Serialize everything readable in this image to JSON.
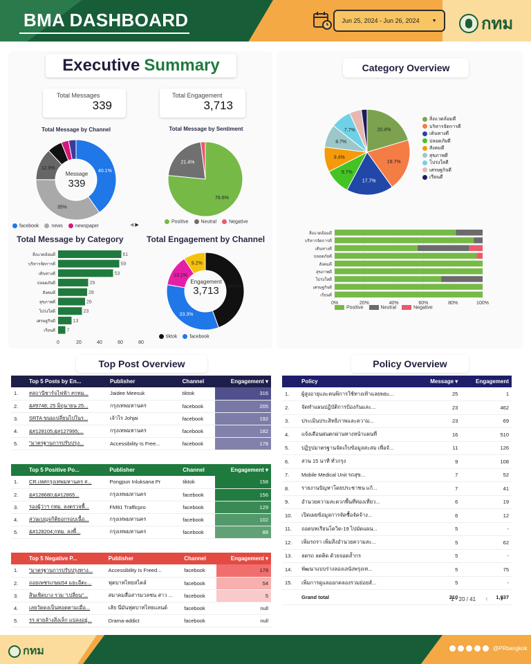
{
  "header": {
    "title": "BMA DASHBOARD",
    "date_range": "Jun 25, 2024 - Jun 26, 2024",
    "logo_text": "กทม"
  },
  "executive": {
    "title_a": "Executive",
    "title_b": "Summary",
    "total_messages_label": "Total Messages",
    "total_messages": "339",
    "total_engagement_label": "Total Engagement",
    "total_engagement": "3,713"
  },
  "channel_chart": {
    "title": "Total Message by Channel",
    "center_label": "Message",
    "center_value": "339",
    "legend": [
      "facebook",
      "news",
      "newspaper"
    ],
    "colors": {
      "facebook": "#1f77e8",
      "news": "#a9a9a9",
      "newspaper": "#d6187a"
    }
  },
  "sentiment_chart": {
    "title": "Total Message by Sentiment",
    "legend": [
      "Positive",
      "Neutral",
      "Negative"
    ]
  },
  "category_bar": {
    "title": "Total Message by Category"
  },
  "engagement_chart": {
    "title": "Total Engagement by Channel",
    "center_label": "Engagement",
    "center_value": "3,713",
    "legend": [
      "tiktok",
      "facebook"
    ]
  },
  "category_overview": {
    "title": "Category Overview",
    "legend": [
      "สิ่งแวดล้อมดี",
      "บริหารจัดการดี",
      "เดินทางดี",
      "ปลอดภัยดี",
      "สังคมดี",
      "สุขภาพดี",
      "โปร่งใสดี",
      "เศรษฐกิจดี",
      "เรียนดี"
    ],
    "bar_legend": [
      "Positive",
      "Neutral",
      "Negative"
    ]
  },
  "top_post": {
    "title": "Top Post Overview",
    "t1": {
      "headers": [
        "Top 5 Posts by En...",
        "Publisher",
        "Channel",
        "Engagement ▾"
      ],
      "rows": [
        [
          "1.",
          "#สถานีชาร์จไฟฟ้า #กทม...",
          "Jaidee Meesuk",
          "tiktok",
          "316"
        ],
        [
          "2.",
          "&#9748; 25 มิถุนายน 25...",
          "กรุงเทพมหานคร",
          "facebook",
          "205"
        ],
        [
          "3.",
          "SRTA ขนมเปลี่ยนไปในร...",
          "เจ้าไร Johjai",
          "facebook",
          "192"
        ],
        [
          "4.",
          "&#128105;&#127995;...",
          "กรุงเทพมหานคร",
          "facebook",
          "182"
        ],
        [
          "5.",
          "\"มาตรฐานการปรับปรุง...",
          "Accessibility Is Free...",
          "facebook",
          "178"
        ]
      ]
    },
    "t2": {
      "headers": [
        "Top 5 Positive Po...",
        "Publisher",
        "Channel",
        "Engagement ▾"
      ],
      "rows": [
        [
          "1.",
          "CR.เทศกรุงเทพมหานคร #...",
          "Pongpun Inluksana Pr",
          "tiktok",
          "158"
        ],
        [
          "2.",
          "&#128680;&#12865...",
          "กรุงเทพมหานคร",
          "facebook",
          "156"
        ],
        [
          "3.",
          "รองผู้ว่าฯ กทม. ลงตรวจพื้...",
          "FM91 Trafficpro",
          "facebook",
          "129"
        ],
        [
          "4.",
          "สวนเบญจกิติยอกรอบเนื้อ...",
          "กรุงเทพมหานคร",
          "facebook",
          "102"
        ],
        [
          "5.",
          "&#128204;กทม. ลงพื้...",
          "กรุงเทพมหานคร",
          "facebook",
          "88"
        ]
      ]
    },
    "t3": {
      "headers": [
        "Top 5 Negative P...",
        "Publisher",
        "Channel",
        "Engagement ▾"
      ],
      "rows": [
        [
          "1.",
          "\"มาตรฐานการปรับปรุงทาง...",
          "Accessibility Is Freed...",
          "facebook",
          "178"
        ],
        [
          "2.",
          "ถอยเพชรเกษม54 แยะอีตะ...",
          "ฟุตบาทไทยสไตล์",
          "facebook",
          "54"
        ],
        [
          "3.",
          "สินเชิดบาง รวม \"เปลี่ยน\"...",
          "สมาคมสื่อสารมวลชน สาว ...",
          "facebook",
          "5"
        ],
        [
          "4.",
          "เลยวัดดงเป็นทอดตามเมื่อ...",
          "เส้ย นี่มันฟุตบาทไทยแลนด์",
          "facebook",
          "null"
        ],
        [
          "5.",
          "รร สายล้างสิ่งเล็ก แปลงอยู่...",
          "Drama-addict",
          "facebook",
          "null"
        ]
      ]
    }
  },
  "policy": {
    "title": "Policy Overview",
    "headers": [
      "Policy",
      "Message ▾",
      "Engagement"
    ],
    "rows": [
      [
        "1.",
        "ผู้สูงอายุและคนพิการใช้ทางเท้าแลยพยะ...",
        "25",
        "1"
      ],
      [
        "2.",
        "จัดทำแผนปฏิบัติการป้องกันและ...",
        "23",
        "462"
      ],
      [
        "3.",
        "ประเมินประสิทธิภาพและความ...",
        "23",
        "69"
      ],
      [
        "4.",
        "แจ้งเดือนฝนตกผ่านทางหน้าแผนที่",
        "16",
        "510"
      ],
      [
        "5.",
        "ปฏิรูปมาตรฐานจัดเก็บข้อมูลสะสม เพื่อจั...",
        "11",
        "126"
      ],
      [
        "6.",
        "สวน 15 นาที ทั่วกรุง",
        "9",
        "108"
      ],
      [
        "7.",
        "Mobile Medical Unit รถสุข...",
        "7",
        "52"
      ],
      [
        "8.",
        "รายงานปัญหาโดยประชาชน แก้...",
        "7",
        "41"
      ],
      [
        "9.",
        "อำนวยความสะดวกพื้นที่ท่องเที่ยว...",
        "6",
        "19"
      ],
      [
        "10.",
        "เปิดเผยข้อมูลการจัดซื้อจัดจ้าง...",
        "6",
        "12"
      ],
      [
        "11.",
        "ถอดบทเรียนโควิด-19 ไปมัดแผน...",
        "5",
        "-"
      ],
      [
        "12.",
        "เพิ่มรถรา เพิ่มสิ่งอำนวยความสะ...",
        "5",
        "62"
      ],
      [
        "13.",
        "ลดรถ ลดติด ด้วยจอดล้ำกร",
        "5",
        "-"
      ],
      [
        "14.",
        "พัฒนาแบบร่างลองเลนังพรุงเท...",
        "5",
        "75"
      ],
      [
        "15.",
        "เพิ่มการดูแลออกคลองรวมย่อยส์...",
        "5",
        "-"
      ]
    ],
    "grand_total": {
      "label": "Grand total",
      "message": "210",
      "engagement": "1,937"
    },
    "pagination": "1 - 20 / 41"
  },
  "footer": {
    "logo_text": "กทม",
    "handle": "@PRbangkok"
  },
  "chart_data": [
    {
      "type": "pie",
      "title": "Total Message by Channel",
      "labels": [
        "facebook",
        "news",
        "newspaper",
        "other"
      ],
      "values": [
        40.1,
        35,
        12.9,
        12
      ],
      "center": "339"
    },
    {
      "type": "pie",
      "title": "Total Message by Sentiment",
      "labels": [
        "Positive",
        "Neutral",
        "Negative"
      ],
      "values": [
        76.6,
        21.4,
        2.0
      ],
      "colors": [
        "#76b947",
        "#707070",
        "#e85a6e"
      ]
    },
    {
      "type": "bar",
      "title": "Total Message by Category",
      "categories": [
        "สิ่งแวดล้อมดี",
        "บริหารจัดการดี",
        "เดินทางดี",
        "ปลอดภัยดี",
        "สังคมดี",
        "สุขภาพดี",
        "โปร่งใสดี",
        "เศรษฐกิจดี",
        "เรียนดี"
      ],
      "values": [
        61,
        59,
        53,
        29,
        28,
        26,
        23,
        13,
        7
      ],
      "xlim": [
        0,
        80
      ],
      "xticks": [
        0,
        20,
        40,
        60,
        80
      ],
      "color": "#1f7a3e"
    },
    {
      "type": "pie",
      "title": "Total Engagement by Channel",
      "labels": [
        "tiktok",
        "facebook",
        "other-pink",
        "other-yellow"
      ],
      "values": [
        44.4,
        33.3,
        13.1,
        9.2
      ],
      "colors": [
        "#111111",
        "#1f77e8",
        "#e51fa8",
        "#f4c20d"
      ],
      "center": "3,713"
    },
    {
      "type": "pie",
      "title": "Category Overview",
      "labels": [
        "สิ่งแวดล้อมดี",
        "บริหารจัดการดี",
        "เดินทางดี",
        "ปลอดภัยดี",
        "สังคมดี",
        "สุขภาพดี",
        "โปร่งใสดี",
        "เศรษฐกิจดี",
        "เรียนดี"
      ],
      "values": [
        20.4,
        19.7,
        17.7,
        9.7,
        9.4,
        8.7,
        7.7,
        4.5,
        2.2
      ],
      "colors": [
        "#7ca24f",
        "#f47c45",
        "#2147a8",
        "#44c424",
        "#f59a0a",
        "#9bc7c9",
        "#6fd1e5",
        "#e6b8b0",
        "#1a1f5a"
      ]
    },
    {
      "type": "bar",
      "stacked": true,
      "orientation": "horizontal",
      "title": "",
      "categories": [
        "สิ่งแวดล้อมดี",
        "บริหารจัดการดี",
        "เดินทางดี",
        "ปลอดภัยดี",
        "สังคมดี",
        "สุขภาพดี",
        "โปร่งใสดี",
        "เศรษฐกิจดี",
        "เรียนดี"
      ],
      "series": [
        {
          "name": "Positive",
          "values": [
            82,
            94,
            56,
            96,
            100,
            100,
            72,
            100,
            100
          ]
        },
        {
          "name": "Neutral",
          "values": [
            18,
            6,
            35,
            0,
            0,
            0,
            28,
            0,
            0
          ]
        },
        {
          "name": "Negative",
          "values": [
            0,
            0,
            9,
            4,
            0,
            0,
            0,
            0,
            0
          ]
        }
      ],
      "xticks": [
        "0%",
        "20%",
        "40%",
        "60%",
        "80%",
        "100%"
      ],
      "colors": [
        "#76b947",
        "#6b6b6b",
        "#e85a6e"
      ]
    }
  ]
}
